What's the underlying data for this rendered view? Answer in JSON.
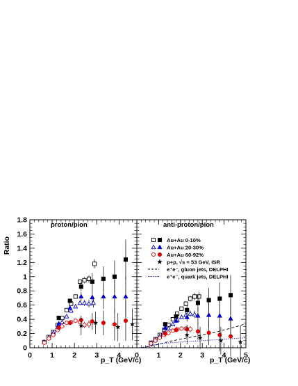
{
  "chart_data": [
    {
      "type": "scatter",
      "title": "proton/pion",
      "xlabel": "p_T (GeV/c)",
      "ylabel": "Ratio",
      "xlim": [
        0,
        4.8
      ],
      "ylim": [
        0,
        1.8
      ],
      "xticks": [
        "0",
        "1",
        "2",
        "3",
        "4"
      ],
      "yticks": [
        "0",
        "0.2",
        "0.4",
        "0.6",
        "0.8",
        "1",
        "1.2",
        "1.4",
        "1.6",
        "1.8"
      ],
      "series": [
        {
          "name": "Au+Au 0-10%",
          "variant": "open-square",
          "color": "#000000",
          "x": [
            0.65,
            0.85,
            1.05,
            1.25,
            1.45,
            1.65,
            1.85,
            2.05,
            2.25,
            2.45,
            2.65,
            2.9
          ],
          "y": [
            0.08,
            0.15,
            0.22,
            0.32,
            0.42,
            0.53,
            0.62,
            0.72,
            0.93,
            0.95,
            0.97,
            1.18
          ]
        },
        {
          "name": "Au+Au 0-10%",
          "variant": "filled-square",
          "color": "#000000",
          "x": [
            1.3,
            1.8,
            2.3,
            2.8,
            3.3,
            3.8,
            4.3
          ],
          "y": [
            0.42,
            0.66,
            0.86,
            0.93,
            0.97,
            1.0,
            1.24
          ]
        },
        {
          "name": "Au+Au 20-30%",
          "variant": "open-triangle",
          "color": "#0000cc",
          "x": [
            0.65,
            0.85,
            1.05,
            1.25,
            1.45,
            1.65,
            1.85,
            2.05,
            2.25,
            2.45,
            2.65,
            2.85
          ],
          "y": [
            0.08,
            0.14,
            0.21,
            0.29,
            0.36,
            0.44,
            0.52,
            0.58,
            0.63,
            0.63,
            0.62,
            0.63
          ]
        },
        {
          "name": "Au+Au 20-30%",
          "variant": "filled-triangle",
          "color": "#0000cc",
          "x": [
            1.3,
            1.8,
            2.3,
            2.8,
            3.3,
            3.8,
            4.3
          ],
          "y": [
            0.34,
            0.56,
            0.72,
            0.71,
            0.72,
            0.72,
            0.72
          ]
        },
        {
          "name": "Au+Au 60-92%",
          "variant": "open-circle",
          "color": "#dd0000",
          "x": [
            0.65,
            0.85,
            1.05,
            1.25,
            1.45,
            1.65,
            1.85,
            2.05,
            2.25,
            2.45,
            2.65
          ],
          "y": [
            0.07,
            0.13,
            0.18,
            0.25,
            0.3,
            0.35,
            0.36,
            0.38,
            0.36,
            0.32,
            0.33
          ]
        },
        {
          "name": "Au+Au 60-92%",
          "variant": "filled-circle",
          "color": "#dd0000",
          "x": [
            1.3,
            1.8,
            2.3,
            2.8,
            3.3,
            3.8,
            4.3
          ],
          "y": [
            0.28,
            0.35,
            0.39,
            0.37,
            0.35,
            0.33,
            0.38
          ]
        },
        {
          "name": "p+p, √s = 53 GeV, ISR",
          "variant": "star",
          "color": "#000000",
          "x": [
            2.3,
            2.95,
            3.95,
            4.6
          ],
          "y": [
            0.31,
            0.35,
            0.29,
            0.33
          ]
        }
      ]
    },
    {
      "type": "scatter",
      "title": "anti-proton/pion",
      "xlabel": "p_T (GeV/c)",
      "xlim": [
        0,
        5
      ],
      "ylim": [
        0,
        1.8
      ],
      "xticks": [
        "0",
        "1",
        "2",
        "3",
        "4",
        "5"
      ],
      "series": [
        {
          "name": "Au+Au 0-10%",
          "variant": "open-square",
          "color": "#000000",
          "x": [
            0.65,
            0.85,
            1.05,
            1.25,
            1.45,
            1.65,
            1.85,
            2.05,
            2.25,
            2.45,
            2.65,
            2.85
          ],
          "y": [
            0.07,
            0.12,
            0.18,
            0.25,
            0.32,
            0.4,
            0.48,
            0.55,
            0.62,
            0.69,
            0.72,
            0.72
          ]
        },
        {
          "name": "Au+Au 0-10%",
          "variant": "filled-square",
          "color": "#000000",
          "x": [
            1.3,
            1.8,
            2.3,
            2.8,
            3.3,
            3.8,
            4.3
          ],
          "y": [
            0.33,
            0.44,
            0.53,
            0.63,
            0.67,
            0.69,
            0.74
          ]
        },
        {
          "name": "Au+Au 20-30%",
          "variant": "open-triangle",
          "color": "#0000cc",
          "x": [
            0.65,
            0.85,
            1.05,
            1.25,
            1.45,
            1.65,
            1.85,
            2.05,
            2.25,
            2.45,
            2.65
          ],
          "y": [
            0.07,
            0.11,
            0.16,
            0.21,
            0.27,
            0.33,
            0.39,
            0.43,
            0.46,
            0.48,
            0.47
          ]
        },
        {
          "name": "Au+Au 20-30%",
          "variant": "filled-triangle",
          "color": "#0000cc",
          "x": [
            1.3,
            1.8,
            2.3,
            2.8,
            3.3,
            3.8,
            4.3
          ],
          "y": [
            0.28,
            0.38,
            0.43,
            0.45,
            0.46,
            0.45,
            0.41
          ]
        },
        {
          "name": "Au+Au 60-92%",
          "variant": "open-circle",
          "color": "#dd0000",
          "x": [
            0.65,
            0.85,
            1.05,
            1.25,
            1.45,
            1.65,
            1.85,
            2.05,
            2.25,
            2.45
          ],
          "y": [
            0.06,
            0.1,
            0.14,
            0.18,
            0.21,
            0.24,
            0.26,
            0.27,
            0.27,
            0.26
          ]
        },
        {
          "name": "Au+Au 60-92%",
          "variant": "filled-circle",
          "color": "#dd0000",
          "x": [
            1.3,
            1.8,
            2.3,
            2.8,
            3.3,
            3.8,
            4.3
          ],
          "y": [
            0.2,
            0.25,
            0.26,
            0.23,
            0.21,
            0.18,
            0.16
          ]
        },
        {
          "name": "p+p, √s = 53 GeV, ISR",
          "variant": "star",
          "color": "#000000",
          "x": [
            2.3,
            2.9,
            3.85,
            4.75
          ],
          "y": [
            0.18,
            0.14,
            0.1,
            0.08
          ]
        },
        {
          "name": "e⁺e⁻, gluon jets, DELPHI",
          "variant": "dashed-line",
          "color": "#000000",
          "x": [
            0.2,
            0.6,
            1.0,
            1.5,
            2.0,
            2.5,
            3.0,
            3.5,
            4.0,
            4.5,
            5.0
          ],
          "y": [
            0.0,
            0.02,
            0.05,
            0.09,
            0.12,
            0.15,
            0.18,
            0.21,
            0.25,
            0.29,
            0.34
          ]
        },
        {
          "name": "e⁺e⁻, quark jets, DELPHI",
          "variant": "dotted-line",
          "color": "#0000cc",
          "x": [
            0.2,
            0.6,
            1.0,
            1.5,
            2.0,
            2.5,
            3.0,
            3.5,
            4.0,
            4.5,
            5.0
          ],
          "y": [
            0.0,
            0.03,
            0.05,
            0.07,
            0.08,
            0.09,
            0.1,
            0.11,
            0.12,
            0.13,
            0.14
          ]
        }
      ]
    }
  ],
  "legend": [
    {
      "symbol": "open-square",
      "symbol2": "filled-square",
      "color": "#000000",
      "label": "Au+Au 0-10%"
    },
    {
      "symbol": "open-triangle",
      "symbol2": "filled-triangle",
      "color": "#0000cc",
      "label": "Au+Au 20-30%"
    },
    {
      "symbol": "open-circle",
      "symbol2": "filled-circle",
      "color": "#dd0000",
      "label": "Au+Au 60-92%"
    },
    {
      "symbol": "star",
      "color": "#000000",
      "label": "p+p, √s = 53 GeV, ISR"
    },
    {
      "symbol": "dashed-line",
      "color": "#000000",
      "label": "e⁺e⁻, gluon jets, DELPHI"
    },
    {
      "symbol": "dotted-line",
      "color": "#0000cc",
      "label": "e⁺e⁻, quark jets, DELPHI"
    }
  ]
}
